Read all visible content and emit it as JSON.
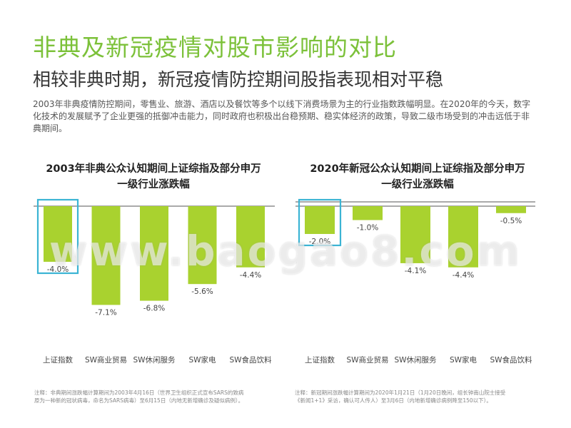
{
  "header": {
    "title": "非典及新冠疫情对股市影响的对比",
    "subtitle": "相较非典时期，新冠疫情防控期间股指表现相对平稳",
    "intro": "2003年非典疫情防控期间，零售业、旅游、酒店以及餐饮等多个以线下消费场景为主的行业指数跌幅明显。在2020年的今天，数字化技术的发展赋予了企业更强的抵御冲击能力，同时政府也积极出台稳预期、稳实体经济的政策，导致二级市场受到的冲击远低于非典期间。"
  },
  "colors": {
    "bar": "#a9d22f",
    "highlight": "#3bb4d4",
    "title_green": "#7cc13a"
  },
  "watermark": "www.baogao8.com",
  "chart_data": [
    {
      "type": "bar",
      "title_line1": "2003年非典公众认知期间上证综指及部分申万",
      "title_line2": "一级行业涨跌幅",
      "categories": [
        "上证指数",
        "SW商业贸易",
        "SW休闲服务",
        "SW家电",
        "SW食品饮料"
      ],
      "values": [
        -4.0,
        -7.1,
        -6.8,
        -5.6,
        -4.4
      ],
      "labels": [
        "-4.0%",
        "-7.1%",
        "-6.8%",
        "-5.6%",
        "-4.4%"
      ],
      "highlight_index": 0,
      "ylim": [
        -8,
        0
      ],
      "footnote_line1": "注释：非典期间涨跌幅计算期间为2003年4月16日（世界卫生组织正式宣布SARS的致病",
      "footnote_line2": "原为一种新的冠状病毒，命名为SARS病毒）至6月15日（内地无新增确诊及疑似病例）。"
    },
    {
      "type": "bar",
      "title_line1": "2020年新冠公众认知期间上证综指及部分申万",
      "title_line2": "一级行业涨跌幅",
      "categories": [
        "上证指数",
        "SW商业贸易",
        "SW休闲服务",
        "SW家电",
        "SW食品饮料"
      ],
      "values": [
        -2.0,
        -1.0,
        -4.1,
        -4.4,
        -0.5
      ],
      "labels": [
        "-2.0%",
        "-1.0%",
        "-4.1%",
        "-4.4%",
        "-0.5%"
      ],
      "highlight_index": 0,
      "ylim": [
        -8,
        0
      ],
      "footnote_line1": "注释：新冠期间涨跌幅计算期间为2020年1月21日（1月20日晚间，组长钟南山院士接受",
      "footnote_line2": "《新闻1+1》采访，确认可人传人）至3月6日（内地新增确诊病例降至150以下）。"
    }
  ]
}
